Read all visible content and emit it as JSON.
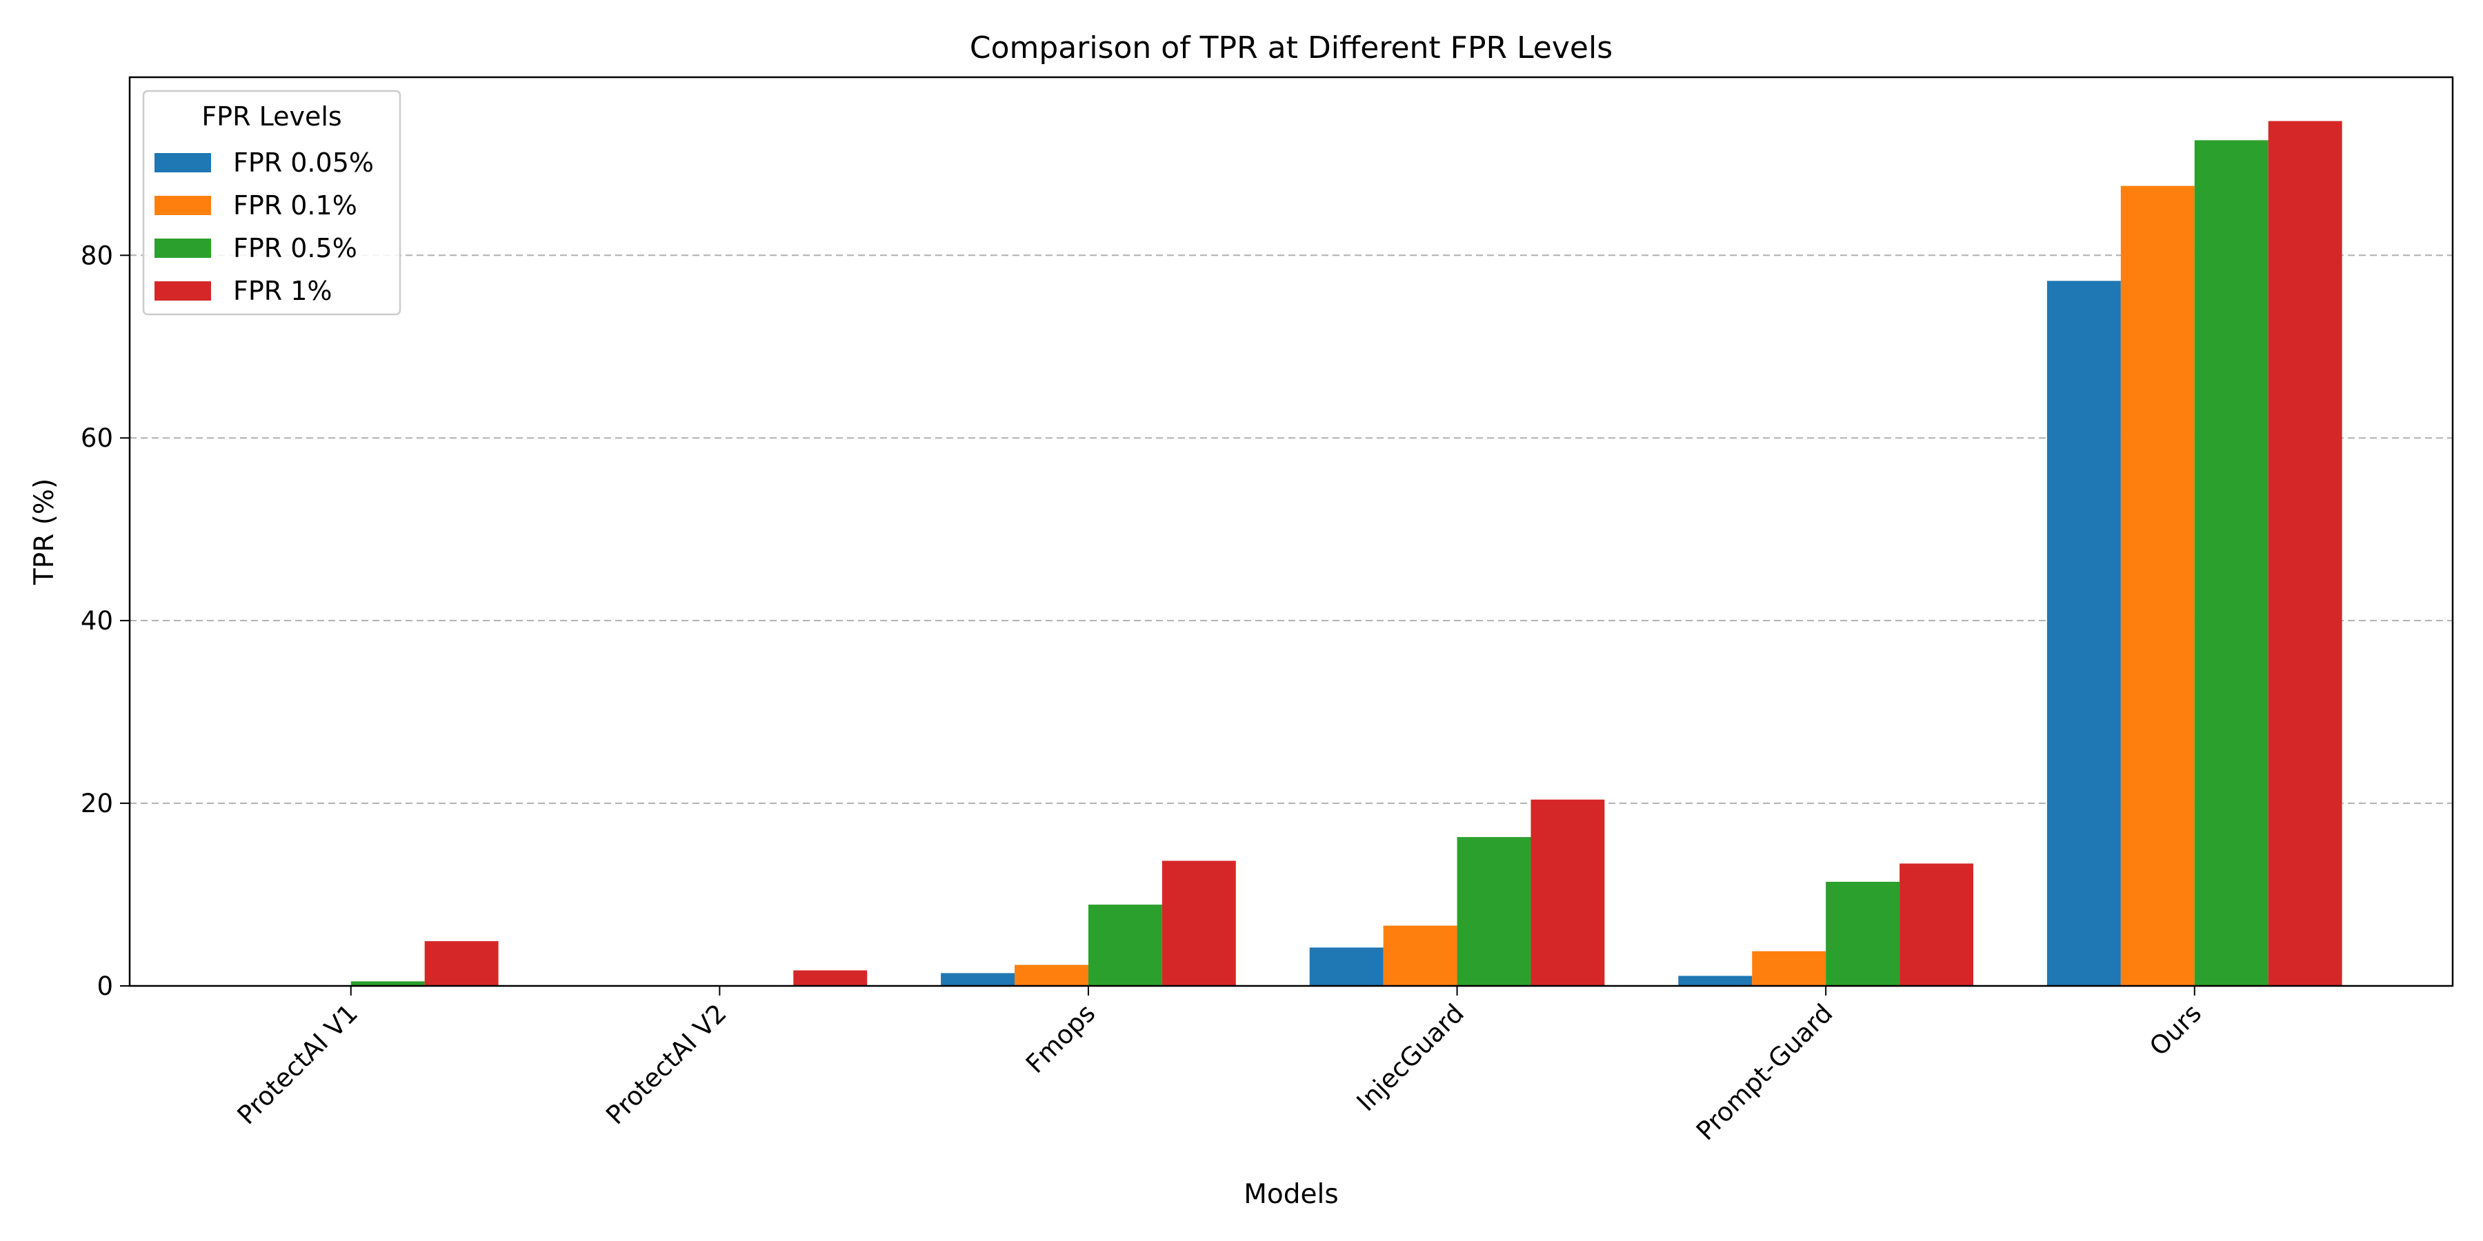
{
  "chart_data": {
    "type": "bar",
    "title": "Comparison of TPR at Different FPR Levels",
    "xlabel": "Models",
    "ylabel": "TPR (%)",
    "categories": [
      "ProtectAI V1",
      "ProtectAI V2",
      "Fmops",
      "InjecGuard",
      "Prompt-Guard",
      "Ours"
    ],
    "series": [
      {
        "name": "FPR 0.05%",
        "color": "#1f77b4",
        "values": [
          0,
          0,
          1.4,
          4.2,
          1.1,
          77.2
        ]
      },
      {
        "name": "FPR 0.1%",
        "color": "#ff7f0e",
        "values": [
          0,
          0,
          2.3,
          6.6,
          3.8,
          87.6
        ]
      },
      {
        "name": "FPR 0.5%",
        "color": "#2ca02c",
        "values": [
          0.5,
          0,
          8.9,
          16.3,
          11.4,
          92.6
        ]
      },
      {
        "name": "FPR 1%",
        "color": "#d62728",
        "values": [
          4.9,
          1.7,
          13.7,
          20.4,
          13.4,
          94.7
        ]
      }
    ],
    "ylim": [
      0,
      99.5
    ],
    "yticks": [
      0,
      20,
      40,
      60,
      80
    ],
    "grid": "y-dashed",
    "legend": {
      "title": "FPR Levels",
      "placement": "top-left"
    }
  }
}
